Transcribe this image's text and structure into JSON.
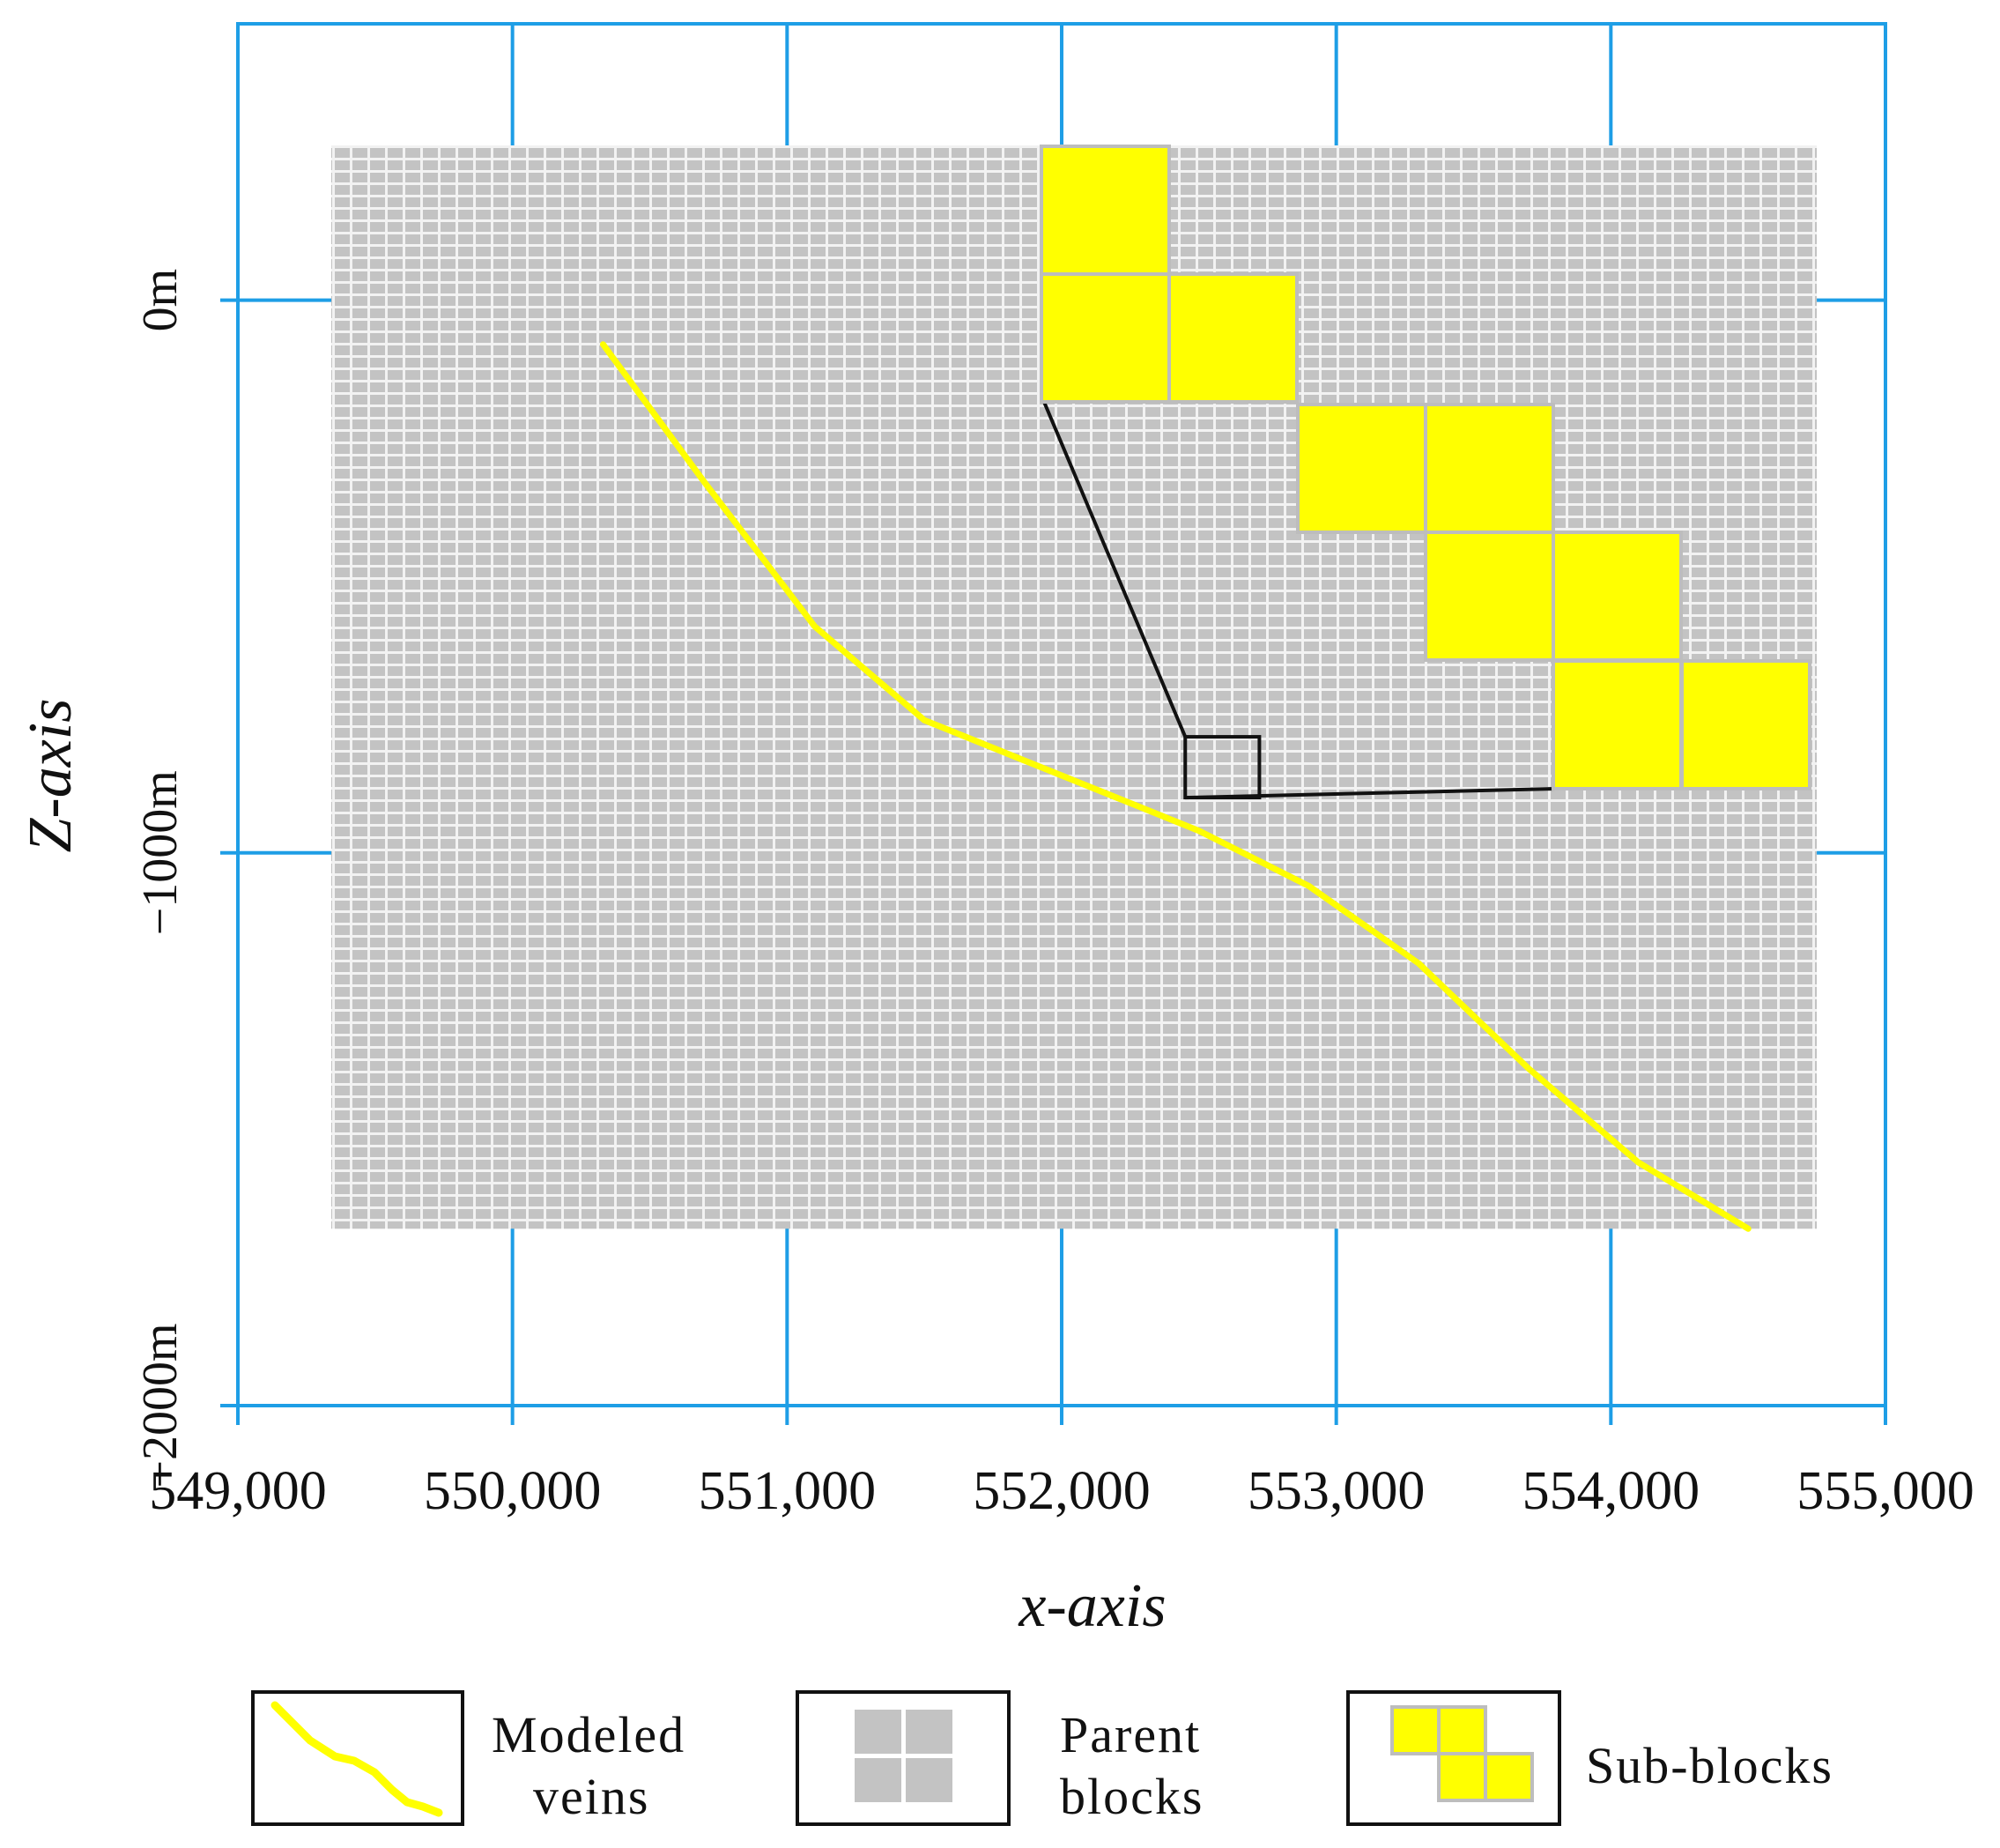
{
  "chart_data": {
    "type": "diagram",
    "xlabel": "x-axis",
    "ylabel": "Z-axis",
    "x_range": [
      549000,
      555000
    ],
    "z_range": [
      -2000,
      500
    ],
    "x_ticks": [
      {
        "value": 549000,
        "label": "549,000"
      },
      {
        "value": 550000,
        "label": "550,000"
      },
      {
        "value": 551000,
        "label": "551,000"
      },
      {
        "value": 552000,
        "label": "552,000"
      },
      {
        "value": 553000,
        "label": "553,000"
      },
      {
        "value": 554000,
        "label": "554,000"
      },
      {
        "value": 555000,
        "label": "555,000"
      }
    ],
    "z_ticks": [
      {
        "value": 0,
        "label": "0m"
      },
      {
        "value": -1000,
        "label": "−1000m"
      },
      {
        "value": -2000,
        "label": "−2000m"
      }
    ],
    "grid": true,
    "parent_block_extent": {
      "x": [
        549340,
        554750
      ],
      "z": [
        280,
        -1680
      ]
    },
    "vein": [
      {
        "x": 550330,
        "z": -80
      },
      {
        "x": 550700,
        "z": -330
      },
      {
        "x": 551100,
        "z": -590
      },
      {
        "x": 551500,
        "z": -760
      },
      {
        "x": 552000,
        "z": -860
      },
      {
        "x": 552500,
        "z": -960
      },
      {
        "x": 552900,
        "z": -1060
      },
      {
        "x": 553300,
        "z": -1200
      },
      {
        "x": 553700,
        "z": -1390
      },
      {
        "x": 554100,
        "z": -1560
      },
      {
        "x": 554500,
        "z": -1680
      }
    ],
    "zoom_box": {
      "x": [
        552450,
        552720
      ],
      "z": [
        -790,
        -900
      ]
    },
    "legend": [
      {
        "key": "veins",
        "line1": "Modeled",
        "line2": "veins"
      },
      {
        "key": "parent",
        "line1": "Parent",
        "line2": "blocks"
      },
      {
        "key": "sub",
        "line1": "Sub-blocks",
        "line2": ""
      }
    ],
    "colors": {
      "frame": "#1e9ee6",
      "vein": "#ffff00",
      "parent_block": "#c3c3c3",
      "grid_line": "#f2f2f2",
      "sub_block": "#ffff00",
      "sub_block_border": "#bdbdbd"
    }
  }
}
